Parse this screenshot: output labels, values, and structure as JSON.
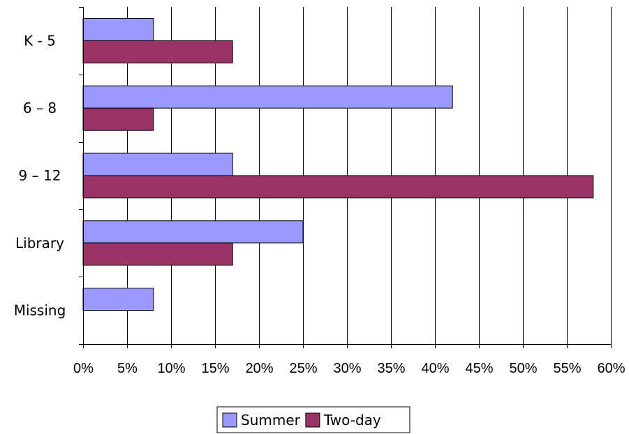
{
  "chart_data": {
    "type": "bar",
    "orientation": "horizontal",
    "categories": [
      "K - 5",
      "6 – 8",
      "9 – 12",
      "Library",
      "Missing"
    ],
    "series": [
      {
        "name": "Summer",
        "values": [
          8,
          42,
          17,
          25,
          8
        ],
        "color": "#9999ff"
      },
      {
        "name": "Two-day",
        "values": [
          17,
          8,
          58,
          17,
          0
        ],
        "color": "#993366"
      }
    ],
    "x_ticks": [
      "0%",
      "5%",
      "10%",
      "15%",
      "20%",
      "25%",
      "30%",
      "35%",
      "40%",
      "45%",
      "50%",
      "55%",
      "60%"
    ],
    "xlim": [
      0,
      60
    ],
    "title": "",
    "xlabel": "",
    "ylabel": "",
    "grid": "vertical",
    "legend_position": "bottom"
  }
}
